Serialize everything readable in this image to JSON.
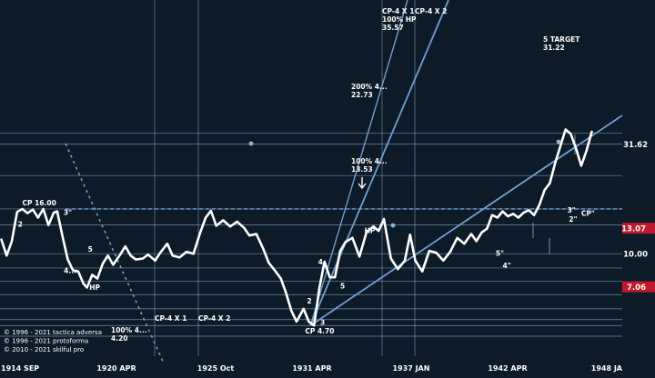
{
  "chart_data": {
    "type": "line",
    "title": "",
    "xlabel": "",
    "ylabel": "",
    "x_ticks": [
      "1914 SEP",
      "1920 APR",
      "1925 Oct",
      "1931 APR",
      "1937 JAN",
      "1942 APR",
      "1948 JA"
    ],
    "y_ticks": [
      {
        "value": 31.62,
        "label": "31.62",
        "badge": false
      },
      {
        "value": 13.07,
        "label": "13.07",
        "badge": true
      },
      {
        "value": 10.0,
        "label": "10.00",
        "badge": false
      },
      {
        "value": 7.06,
        "label": "7.06",
        "badge": true
      }
    ],
    "series": [
      {
        "values": [
          [
            1914.7,
            11.6
          ],
          [
            1915.0,
            9.8
          ],
          [
            1915.3,
            11.4
          ],
          [
            1915.6,
            15.5
          ],
          [
            1915.9,
            16.0
          ],
          [
            1916.2,
            15.3
          ],
          [
            1916.5,
            15.9
          ],
          [
            1916.8,
            14.6
          ],
          [
            1917.1,
            16.0
          ],
          [
            1917.4,
            13.5
          ],
          [
            1917.7,
            15.4
          ],
          [
            1917.9,
            15.6
          ],
          [
            1918.2,
            12.0
          ],
          [
            1918.5,
            9.4
          ],
          [
            1918.8,
            8.4
          ],
          [
            1919.1,
            8.3
          ],
          [
            1919.4,
            7.3
          ],
          [
            1919.6,
            7.0
          ],
          [
            1919.9,
            8.0
          ],
          [
            1920.2,
            7.7
          ],
          [
            1920.5,
            9.0
          ],
          [
            1920.8,
            9.8
          ],
          [
            1921.1,
            8.9
          ],
          [
            1921.5,
            9.9
          ],
          [
            1921.8,
            10.8
          ],
          [
            1922.1,
            9.8
          ],
          [
            1922.4,
            9.4
          ],
          [
            1922.8,
            9.5
          ],
          [
            1923.1,
            9.9
          ],
          [
            1923.5,
            9.3
          ],
          [
            1923.8,
            10.1
          ],
          [
            1924.2,
            11.1
          ],
          [
            1924.5,
            9.8
          ],
          [
            1924.9,
            9.6
          ],
          [
            1925.3,
            10.2
          ],
          [
            1925.7,
            10.0
          ],
          [
            1926.1,
            12.6
          ],
          [
            1926.4,
            14.6
          ],
          [
            1926.7,
            15.7
          ],
          [
            1927.0,
            13.4
          ],
          [
            1927.4,
            14.2
          ],
          [
            1927.8,
            13.3
          ],
          [
            1928.2,
            14.0
          ],
          [
            1928.6,
            13.1
          ],
          [
            1928.9,
            12.1
          ],
          [
            1929.3,
            12.3
          ],
          [
            1929.7,
            10.5
          ],
          [
            1930.0,
            9.1
          ],
          [
            1930.4,
            8.3
          ],
          [
            1930.7,
            7.7
          ],
          [
            1931.0,
            6.6
          ],
          [
            1931.3,
            5.5
          ],
          [
            1931.6,
            4.9
          ],
          [
            1932.0,
            5.6
          ],
          [
            1932.3,
            4.9
          ],
          [
            1932.6,
            4.7
          ],
          [
            1932.9,
            6.9
          ],
          [
            1933.2,
            9.2
          ],
          [
            1933.5,
            7.8
          ],
          [
            1933.8,
            7.8
          ],
          [
            1934.1,
            10.3
          ],
          [
            1934.4,
            11.3
          ],
          [
            1934.8,
            11.8
          ],
          [
            1935.2,
            9.7
          ],
          [
            1935.6,
            12.5
          ],
          [
            1936.0,
            13.3
          ],
          [
            1936.3,
            12.7
          ],
          [
            1936.6,
            14.4
          ],
          [
            1937.0,
            9.5
          ],
          [
            1937.4,
            8.5
          ],
          [
            1937.8,
            9.3
          ],
          [
            1938.1,
            12.2
          ],
          [
            1938.4,
            9.3
          ],
          [
            1938.8,
            8.3
          ],
          [
            1939.2,
            10.3
          ],
          [
            1939.6,
            10.1
          ],
          [
            1940.0,
            9.3
          ],
          [
            1940.4,
            10.2
          ],
          [
            1940.8,
            11.8
          ],
          [
            1941.2,
            11.1
          ],
          [
            1941.6,
            12.3
          ],
          [
            1941.9,
            11.4
          ],
          [
            1942.2,
            12.5
          ],
          [
            1942.5,
            13.0
          ],
          [
            1942.8,
            15.0
          ],
          [
            1943.1,
            14.6
          ],
          [
            1943.4,
            15.6
          ],
          [
            1943.7,
            14.8
          ],
          [
            1944.0,
            15.2
          ],
          [
            1944.3,
            14.6
          ],
          [
            1944.6,
            15.4
          ],
          [
            1944.9,
            15.8
          ],
          [
            1945.2,
            15.0
          ],
          [
            1945.5,
            16.7
          ],
          [
            1945.8,
            19.5
          ],
          [
            1946.1,
            21.0
          ],
          [
            1946.4,
            25.8
          ],
          [
            1946.7,
            30.9
          ],
          [
            1947.0,
            36.9
          ],
          [
            1947.3,
            35.2
          ],
          [
            1947.6,
            30.2
          ],
          [
            1947.9,
            25.2
          ],
          [
            1948.2,
            29.5
          ],
          [
            1948.5,
            36.0
          ]
        ]
      }
    ],
    "point_labels": [
      {
        "x": 1916.0,
        "y": 16.0,
        "text": "CP 16.00"
      },
      {
        "x": 1915.8,
        "y": 14.6,
        "text": "2"
      },
      {
        "x": 1918.0,
        "y": 15.6,
        "text": "3\""
      },
      {
        "x": 1919.5,
        "y": 10.0,
        "text": "5"
      },
      {
        "x": 1918.9,
        "y": 8.4,
        "text": "4..."
      },
      {
        "x": 1920.0,
        "y": 7.3,
        "text": "HP"
      },
      {
        "x": 1932.4,
        "y": 4.7,
        "text": "CP 4.70"
      },
      {
        "x": 1932.2,
        "y": 5.7,
        "text": "2"
      },
      {
        "x": 1932.9,
        "y": 5.0,
        "text": "3"
      },
      {
        "x": 1933.1,
        "y": 9.1,
        "text": "4"
      },
      {
        "x": 1934.0,
        "y": 7.5,
        "text": "5"
      },
      {
        "x": 1935.8,
        "y": 12.9,
        "text": "HP"
      },
      {
        "x": 1947.1,
        "y": 15.4,
        "text": "3\""
      },
      {
        "x": 1948.0,
        "y": 15.3,
        "text": "CP\""
      },
      {
        "x": 1947.3,
        "y": 14.0,
        "text": "2\""
      },
      {
        "x": 1943.0,
        "y": 9.8,
        "text": "5\""
      },
      {
        "x": 1943.4,
        "y": 8.6,
        "text": "4\""
      }
    ],
    "annotations": [
      {
        "lines": [
          "CP-4 X 1",
          "100% HP",
          "35.57"
        ]
      },
      {
        "lines": [
          "CP-4 X 2"
        ]
      },
      {
        "lines": [
          "5 TARGET",
          "31.22"
        ]
      },
      {
        "lines": [
          "200%  4...",
          "22.73"
        ]
      },
      {
        "lines": [
          "100%  4...",
          "13.53"
        ]
      },
      {
        "lines": [
          "CP-4 X 1"
        ]
      },
      {
        "lines": [
          "CP-4 X 2"
        ]
      },
      {
        "lines": [
          "100%  4...",
          "4.20"
        ]
      }
    ],
    "copyright": [
      "© 1996 - 2021 tactica adversa",
      "© 1996 - 2021 protoforma",
      "© 2010 - 2021 skilful pro"
    ],
    "grid": true,
    "y_scale": "log",
    "xlim": [
      1914.7,
      1949.0
    ],
    "ylim": [
      3.0,
      45.0
    ],
    "colors": {
      "background": "#0d1a28",
      "price_line": "#ffffff",
      "guide_line": "#8fb4d6",
      "trend_line": "#6f9fd3",
      "dashed_line": "#6f9fd3",
      "badge": "#c0182c"
    }
  }
}
